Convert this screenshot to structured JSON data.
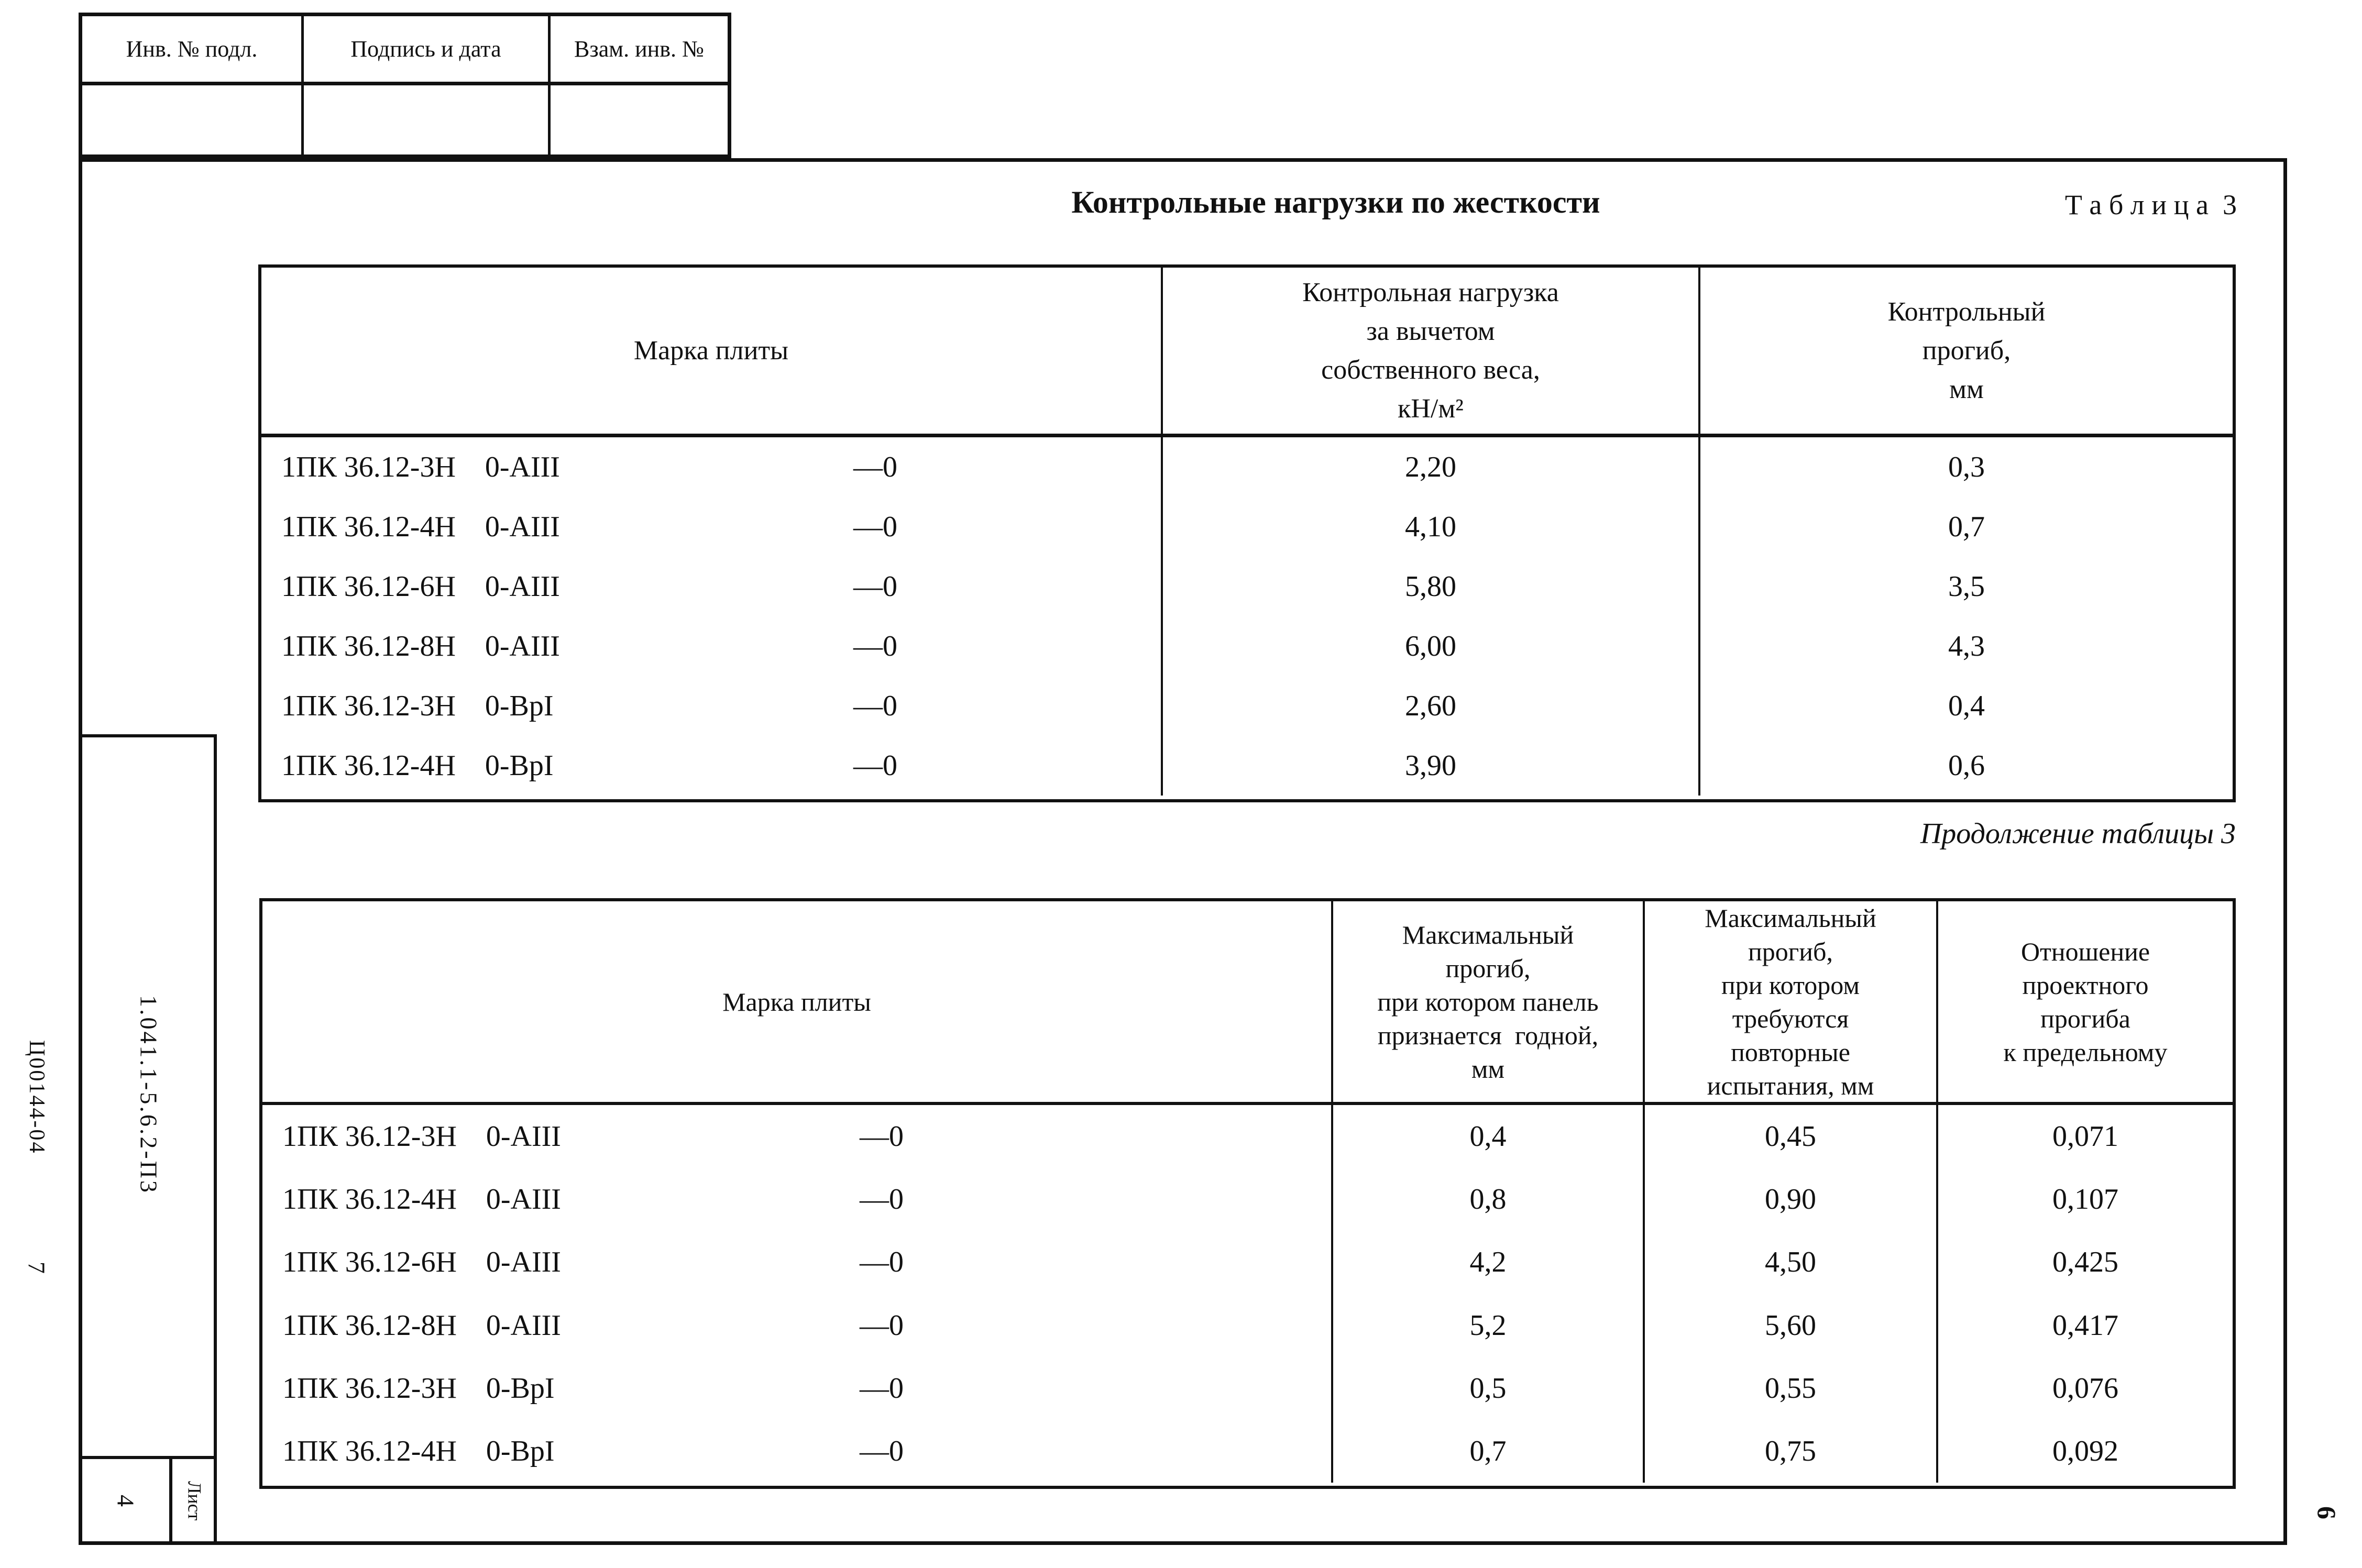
{
  "colors": {
    "ink": "#111111",
    "paper": "#ffffff"
  },
  "margins": {
    "doc_code_outer": "Ц00144-04",
    "page_number_left": "7",
    "doc_code_inner": "1.041.1-5.6.2-П3",
    "sheet_caption": "Лист",
    "sheet_number": "4",
    "page_number_right": "6"
  },
  "stamp": {
    "cells": [
      "Инв. № подл.",
      "Подпись и дата",
      "Взам. инв. №"
    ]
  },
  "heading": {
    "title": "Контрольные нагрузки по жесткости",
    "table_label": "Т а б л и ц а  3",
    "continuation_label": "Продолжение таблицы 3"
  },
  "table1": {
    "col1_header": "Марка плиты",
    "col2_header_lines": [
      "Контрольная нагрузка",
      "за вычетом",
      "собственного веса,",
      "кН/м²"
    ],
    "col3_header_lines": [
      "Контрольный",
      "прогиб,",
      "мм"
    ],
    "rows": [
      {
        "mark": "1ПК 36.12-3Н",
        "reinforcement": "0-АIII",
        "zero": "—0",
        "load": "2,20",
        "deflection": "0,3"
      },
      {
        "mark": "1ПК 36.12-4Н",
        "reinforcement": "0-АIII",
        "zero": "—0",
        "load": "4,10",
        "deflection": "0,7"
      },
      {
        "mark": "1ПК 36.12-6Н",
        "reinforcement": "0-АIII",
        "zero": "—0",
        "load": "5,80",
        "deflection": "3,5"
      },
      {
        "mark": "1ПК 36.12-8Н",
        "reinforcement": "0-АIII",
        "zero": "—0",
        "load": "6,00",
        "deflection": "4,3"
      },
      {
        "mark": "1ПК 36.12-3Н",
        "reinforcement": "0-ВрI",
        "zero": "—0",
        "load": "2,60",
        "deflection": "0,4"
      },
      {
        "mark": "1ПК 36.12-4Н",
        "reinforcement": "0-ВрI",
        "zero": "—0",
        "load": "3,90",
        "deflection": "0,6"
      }
    ]
  },
  "table2": {
    "col1_header": "Марка плиты",
    "col2_header_lines": [
      "Максимальный",
      "прогиб,",
      "при котором панель",
      "признается  годной,",
      "мм"
    ],
    "col3_header_lines": [
      "Максимальный",
      "прогиб,",
      "при котором",
      "требуются",
      "повторные",
      "испытания, мм"
    ],
    "col4_header_lines": [
      "Отношение",
      "проектного",
      "прогиба",
      "к предельному"
    ],
    "rows": [
      {
        "mark": "1ПК 36.12-3Н",
        "reinforcement": "0-АIII",
        "zero": "—0",
        "max_ok": "0,4",
        "max_retest": "0,45",
        "ratio": "0,071"
      },
      {
        "mark": "1ПК 36.12-4Н",
        "reinforcement": "0-АIII",
        "zero": "—0",
        "max_ok": "0,8",
        "max_retest": "0,90",
        "ratio": "0,107"
      },
      {
        "mark": "1ПК 36.12-6Н",
        "reinforcement": "0-АIII",
        "zero": "—0",
        "max_ok": "4,2",
        "max_retest": "4,50",
        "ratio": "0,425"
      },
      {
        "mark": "1ПК 36.12-8Н",
        "reinforcement": "0-АIII",
        "zero": "—0",
        "max_ok": "5,2",
        "max_retest": "5,60",
        "ratio": "0,417"
      },
      {
        "mark": "1ПК 36.12-3Н",
        "reinforcement": "0-ВрI",
        "zero": "—0",
        "max_ok": "0,5",
        "max_retest": "0,55",
        "ratio": "0,076"
      },
      {
        "mark": "1ПК 36.12-4Н",
        "reinforcement": "0-ВрI",
        "zero": "—0",
        "max_ok": "0,7",
        "max_retest": "0,75",
        "ratio": "0,092"
      }
    ]
  }
}
